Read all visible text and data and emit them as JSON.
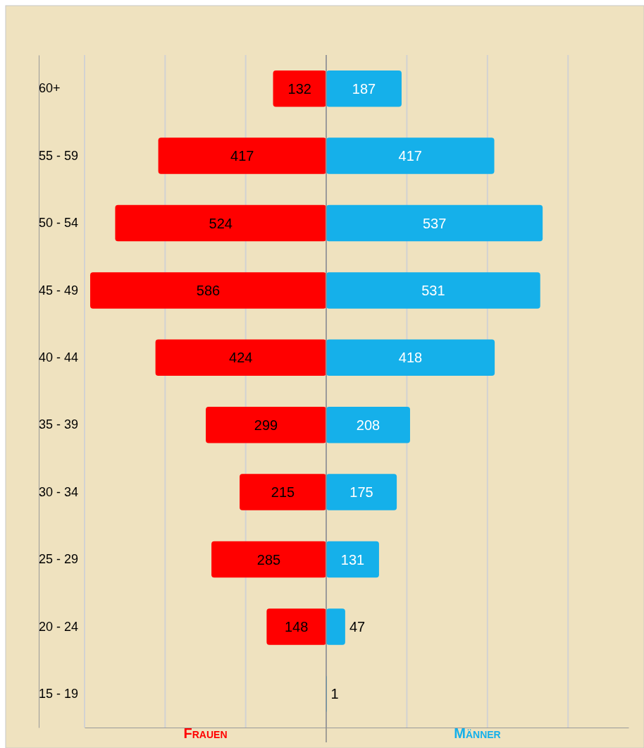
{
  "chart_data": [
    {
      "type": "bar",
      "orientation": "horizontal",
      "categories": [
        "60+",
        "55 - 59",
        "50 - 54",
        "45 - 49",
        "40 - 44",
        "35 - 39",
        "30 - 34",
        "25 - 29",
        "20 - 24",
        "15 - 19"
      ],
      "series": [
        {
          "name": "Frauen",
          "color": "#ff0000",
          "values": [
            132,
            417,
            524,
            586,
            424,
            299,
            215,
            285,
            148,
            null
          ]
        }
      ],
      "data_labels": true,
      "xlim": [
        600,
        0
      ],
      "xticks": [
        {
          "value": 600,
          "label": null
        },
        {
          "value": 400,
          "label": null
        },
        {
          "value": 200,
          "label": null
        },
        {
          "value": 0,
          "label": null
        }
      ],
      "grid": "x",
      "tick_labels": "y",
      "legend": "bottom"
    },
    {
      "type": "bar",
      "orientation": "horizontal",
      "categories": [
        "60+",
        "55 - 59",
        "50 - 54",
        "45 - 49",
        "40 - 44",
        "35 - 39",
        "30 - 34",
        "25 - 29",
        "20 - 24",
        "15 - 19"
      ],
      "series": [
        {
          "name": "Männer",
          "color": "#15b0ea",
          "values": [
            187,
            417,
            537,
            531,
            418,
            208,
            175,
            131,
            47,
            1
          ]
        }
      ],
      "data_labels": true,
      "xlim": [
        0,
        750
      ],
      "xticks": [
        {
          "value": 0,
          "label": null
        },
        {
          "value": 200,
          "label": null
        },
        {
          "value": 400,
          "label": null
        },
        {
          "value": 600,
          "label": null
        }
      ],
      "grid": "x",
      "tick_labels": false,
      "legend": "bottom"
    }
  ]
}
